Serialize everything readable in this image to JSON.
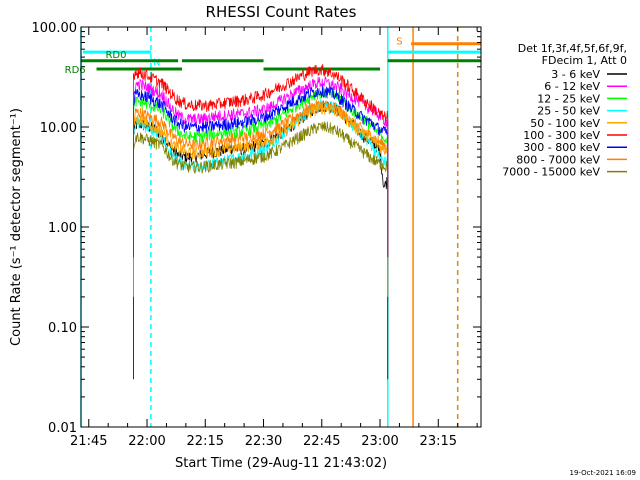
{
  "chart_data": {
    "type": "line",
    "title": "RHESSI Count Rates",
    "xlabel": "Start Time (29-Aug-11 21:43:02)",
    "ylabel": "Count Rate (s⁻¹ detector segment⁻¹)",
    "yscale": "log",
    "ylim": [
      0.01,
      100
    ],
    "xlim_minutes": [
      0,
      103
    ],
    "x_ticks": [
      {
        "minute": 2,
        "label": "21:45"
      },
      {
        "minute": 17,
        "label": "22:00"
      },
      {
        "minute": 32,
        "label": "22:15"
      },
      {
        "minute": 47,
        "label": "22:30"
      },
      {
        "minute": 62,
        "label": "22:45"
      },
      {
        "minute": 77,
        "label": "23:00"
      },
      {
        "minute": 92,
        "label": "23:15"
      }
    ],
    "y_ticks": [
      {
        "value": 100,
        "label": "100.00"
      },
      {
        "value": 10,
        "label": "10.00"
      },
      {
        "value": 1,
        "label": "1.00"
      },
      {
        "value": 0.1,
        "label": "0.10"
      },
      {
        "value": 0.01,
        "label": "0.01"
      }
    ],
    "legend_header": [
      "Det 1f,3f,4f,5f,6f,9f,",
      "FDecim 1, Att 0"
    ],
    "time_minutes": [
      13.5,
      14,
      15,
      17,
      19,
      21,
      23,
      25,
      27,
      29,
      31,
      33,
      35,
      37,
      39,
      41,
      43,
      45,
      47,
      49,
      51,
      53,
      55,
      57,
      59,
      61,
      63,
      65,
      67,
      69,
      71,
      73,
      75,
      76,
      77,
      78,
      79
    ],
    "series": [
      {
        "name": "3 - 6 keV",
        "color": "#000000",
        "drop_min": 0.03,
        "values": [
          8.5,
          10.5,
          10.8,
          10.3,
          9.5,
          8.2,
          6.2,
          5.3,
          5.0,
          5.1,
          5.3,
          5.5,
          5.7,
          5.9,
          6.2,
          6.0,
          6.1,
          6.6,
          6.8,
          7.5,
          8.5,
          9.5,
          11.0,
          12.5,
          14.5,
          16.0,
          16.5,
          16.0,
          14.0,
          11.5,
          9.5,
          8.0,
          7.0,
          6.5,
          5.5,
          2.5,
          3.0
        ]
      },
      {
        "name": "6 - 12 keV",
        "color": "#ff00ff",
        "drop_min": 0.5,
        "values": [
          20,
          26,
          27,
          25,
          23,
          21,
          16,
          13,
          12,
          12,
          12,
          12.5,
          13,
          13,
          13.5,
          13.5,
          14,
          14.5,
          15,
          16,
          18,
          20,
          22,
          24,
          26,
          28,
          28,
          26,
          24,
          21,
          19,
          16.5,
          15,
          14,
          13,
          12,
          11
        ]
      },
      {
        "name": "12 - 25 keV",
        "color": "#00ff00",
        "drop_min": 0.5,
        "values": [
          14,
          18,
          18,
          17,
          16,
          14.5,
          11,
          9,
          8,
          8,
          8,
          8.5,
          8.5,
          9,
          9,
          9,
          9.5,
          10,
          10.5,
          11,
          12.5,
          14,
          16,
          18,
          20,
          22,
          22,
          21,
          19,
          16,
          13.5,
          12,
          10,
          9,
          8.5,
          8,
          7
        ]
      },
      {
        "name": "25 - 50 keV",
        "color": "#00ffff",
        "drop_min": 0.5,
        "values": [
          9,
          11,
          11,
          10,
          9,
          7.5,
          5.5,
          4.5,
          4.0,
          4.0,
          4.0,
          4.2,
          4.4,
          4.6,
          4.8,
          5.0,
          5.2,
          5.5,
          6,
          7,
          8,
          9.5,
          11,
          13,
          15,
          16.5,
          17,
          16,
          14,
          11.5,
          9.5,
          8,
          6.5,
          5.5,
          5,
          4.5,
          4.5
        ]
      },
      {
        "name": "50 - 100 keV",
        "color": "#ffa500",
        "drop_min": 0.5,
        "values": [
          10,
          12,
          12,
          11,
          10,
          9,
          7,
          6,
          5.5,
          5.5,
          5.6,
          5.7,
          5.8,
          6,
          6.2,
          6.3,
          6.5,
          6.8,
          7,
          7.5,
          8.5,
          9.5,
          11,
          12.5,
          14,
          15.5,
          15.5,
          15,
          13.5,
          11.5,
          10,
          8.5,
          7.5,
          6.8,
          6.3,
          6,
          6
        ]
      },
      {
        "name": "100 - 300 keV",
        "color": "#ff0000",
        "drop_min": 0.5,
        "values": [
          33,
          36,
          35,
          33,
          30,
          27,
          22,
          18.5,
          17,
          16.5,
          16.5,
          16.5,
          17,
          17.5,
          18,
          18.5,
          19,
          20,
          21,
          23,
          25,
          27.5,
          30,
          33,
          36,
          38,
          37,
          34,
          30,
          25.5,
          21.5,
          18.5,
          16,
          14.5,
          13.5,
          12.5,
          13
        ]
      },
      {
        "name": "300 - 800 keV",
        "color": "#0000ff",
        "drop_min": 0.5,
        "values": [
          17,
          21,
          21,
          20,
          18.5,
          16.5,
          13,
          11,
          10,
          10,
          10,
          10,
          10.5,
          10.5,
          11,
          11,
          11.5,
          12,
          12.5,
          13.5,
          15,
          16.5,
          18.5,
          20,
          22,
          23,
          23,
          21.5,
          19,
          16,
          14,
          12,
          11,
          10,
          9.5,
          9,
          8.5
        ]
      },
      {
        "name": "800 - 7000 keV",
        "color": "#ff7f00",
        "drop_min": 0.2,
        "values": [
          11,
          14,
          14,
          13,
          12,
          11,
          8.5,
          7.3,
          6.8,
          6.7,
          6.8,
          7,
          7.2,
          7.4,
          7.6,
          7.8,
          8,
          8.3,
          8.6,
          9.2,
          10,
          11.3,
          12.5,
          14,
          15.5,
          16.5,
          16.5,
          15.5,
          14,
          12,
          10.5,
          9,
          8,
          7.5,
          7,
          6.7,
          6.5
        ]
      },
      {
        "name": "7000 - 15000 keV",
        "color": "#808000",
        "drop_min": 0.5,
        "values": [
          6.5,
          8,
          8,
          7.5,
          7,
          6.5,
          5,
          4.3,
          4.0,
          4.0,
          4.0,
          4.1,
          4.2,
          4.3,
          4.4,
          4.5,
          4.7,
          4.9,
          5.1,
          5.5,
          6,
          6.7,
          7.5,
          8.3,
          9.2,
          10,
          10,
          9.5,
          8.5,
          7.3,
          6.3,
          5.5,
          4.8,
          4.5,
          4.3,
          4.1,
          4.0
        ]
      }
    ],
    "annotations": {
      "vlines": [
        {
          "minute": 0,
          "color": "#00ffff",
          "style": "solid"
        },
        {
          "minute": 18,
          "color": "#00ffff",
          "style": "dashed"
        },
        {
          "minute": 79,
          "color": "#00ffff",
          "style": "solid"
        },
        {
          "minute": 85.5,
          "color": "#ff7f00",
          "style": "solid"
        },
        {
          "minute": 97,
          "color": "#00ffff",
          "style": "dashed"
        },
        {
          "minute": 97,
          "color": "#ff7f00",
          "style": "dashed"
        }
      ],
      "bars": [
        {
          "label": "N",
          "color": "#00ffff",
          "start": 0.5,
          "end": 18,
          "y": 56,
          "label_minute": 19.5,
          "label_y": 45
        },
        {
          "label": "N",
          "color": "#00ffff",
          "start": 79,
          "end": 103,
          "y": 56
        },
        {
          "label": "S",
          "color": "#ff7f00",
          "start": 85,
          "end": 103,
          "y": 68,
          "label_minute": 82,
          "label_y": 73
        },
        {
          "label": "RD0",
          "color": "#008000",
          "start": 0,
          "end": 25,
          "y": 46,
          "label_minute": 9,
          "label_y": 54
        },
        {
          "label": "RD0",
          "color": "#008000",
          "start": 26,
          "end": 47,
          "y": 46
        },
        {
          "label": "RD0",
          "color": "#008000",
          "start": 79,
          "end": 103,
          "y": 46
        },
        {
          "label": "RD6",
          "color": "#008000",
          "start": 4,
          "end": 26,
          "y": 38,
          "label_minute": -1.5,
          "label_y": 38
        },
        {
          "label": "RD6",
          "color": "#008000",
          "start": 47,
          "end": 77,
          "y": 38
        }
      ]
    },
    "timestamp": "19-Oct-2021 16:09"
  }
}
